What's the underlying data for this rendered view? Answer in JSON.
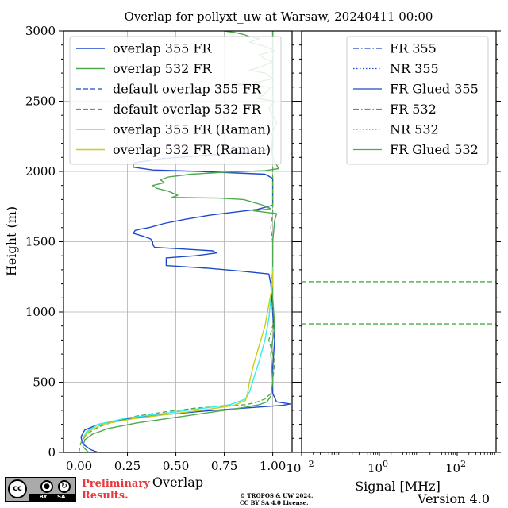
{
  "figure": {
    "title": "Overlap for pollyxt_uw at Warsaw, 20240411 00:00",
    "prelim_line1": "Preliminary",
    "prelim_line2": "Results.",
    "copyright_line1": "© TROPOS & UW 2024.",
    "copyright_line2": "CC BY SA 4.0 License.",
    "version": "Version 4.0",
    "cc_badge": {
      "main": "cc",
      "labels": "BY SA",
      "icons": [
        "person-icon",
        "share-alike-icon"
      ]
    }
  },
  "chart_data": [
    {
      "type": "line",
      "panel": "overlap",
      "xlabel": "Overlap",
      "ylabel": "Height (m)",
      "xlim": [
        -0.08,
        1.1
      ],
      "ylim": [
        0,
        3000
      ],
      "xticks": [
        "0.00",
        "0.25",
        "0.50",
        "0.75",
        "1.00"
      ],
      "xtick_values": [
        0,
        0.25,
        0.5,
        0.75,
        1.0
      ],
      "yticks": [
        "0",
        "500",
        "1000",
        "1500",
        "2000",
        "2500",
        "3000"
      ],
      "ytick_values": [
        0,
        500,
        1000,
        1500,
        2000,
        2500,
        3000
      ],
      "grid": true,
      "legend_position": "top-right",
      "series": [
        {
          "name": "overlap 355 FR",
          "color": "#1f49cc",
          "dash": "solid",
          "width": 1.4,
          "points": [
            [
              0.1,
              0
            ],
            [
              0.06,
              20
            ],
            [
              0.02,
              60
            ],
            [
              0.01,
              110
            ],
            [
              0.03,
              160
            ],
            [
              0.1,
              200
            ],
            [
              0.25,
              240
            ],
            [
              0.45,
              270
            ],
            [
              0.65,
              295
            ],
            [
              0.85,
              315
            ],
            [
              1.05,
              335
            ],
            [
              1.09,
              345
            ],
            [
              1.02,
              360
            ],
            [
              1.0,
              420
            ],
            [
              1.0,
              600
            ],
            [
              1.01,
              800
            ],
            [
              1.0,
              1000
            ],
            [
              0.99,
              1200
            ],
            [
              0.98,
              1270
            ],
            [
              0.84,
              1290
            ],
            [
              0.67,
              1310
            ],
            [
              0.45,
              1330
            ],
            [
              0.45,
              1360
            ],
            [
              0.45,
              1385
            ],
            [
              0.6,
              1400
            ],
            [
              0.71,
              1420
            ],
            [
              0.69,
              1435
            ],
            [
              0.52,
              1450
            ],
            [
              0.39,
              1460
            ],
            [
              0.38,
              1480
            ],
            [
              0.38,
              1500
            ],
            [
              0.37,
              1520
            ],
            [
              0.33,
              1540
            ],
            [
              0.28,
              1560
            ],
            [
              0.29,
              1580
            ],
            [
              0.32,
              1590
            ],
            [
              0.36,
              1600
            ],
            [
              0.44,
              1630
            ],
            [
              0.55,
              1660
            ],
            [
              0.68,
              1690
            ],
            [
              0.8,
              1710
            ],
            [
              0.92,
              1730
            ],
            [
              1.0,
              1760
            ],
            [
              1.0,
              1850
            ],
            [
              1.0,
              1950
            ],
            [
              0.96,
              1980
            ],
            [
              0.62,
              2000
            ],
            [
              0.38,
              2010
            ],
            [
              0.28,
              2030
            ],
            [
              0.28,
              2060
            ],
            [
              0.42,
              2090
            ],
            [
              0.7,
              2120
            ],
            [
              0.93,
              2140
            ],
            [
              1.0,
              2170
            ],
            [
              1.0,
              2300
            ],
            [
              1.0,
              2500
            ],
            [
              1.0,
              2700
            ],
            [
              1.0,
              3000
            ]
          ]
        },
        {
          "name": "overlap 532 FR",
          "color": "#4daa4d",
          "dash": "solid",
          "width": 1.4,
          "points": [
            [
              0.05,
              0
            ],
            [
              0.02,
              40
            ],
            [
              0.03,
              90
            ],
            [
              0.07,
              130
            ],
            [
              0.15,
              170
            ],
            [
              0.3,
              210
            ],
            [
              0.5,
              250
            ],
            [
              0.7,
              290
            ],
            [
              0.85,
              320
            ],
            [
              0.93,
              340
            ],
            [
              0.97,
              360
            ],
            [
              0.99,
              400
            ],
            [
              1.0,
              500
            ],
            [
              0.99,
              700
            ],
            [
              1.01,
              900
            ],
            [
              1.0,
              1100
            ],
            [
              1.0,
              1300
            ],
            [
              1.0,
              1500
            ],
            [
              1.01,
              1650
            ],
            [
              1.02,
              1700
            ],
            [
              0.9,
              1720
            ],
            [
              0.99,
              1735
            ],
            [
              0.95,
              1760
            ],
            [
              0.9,
              1780
            ],
            [
              0.85,
              1800
            ],
            [
              0.72,
              1810
            ],
            [
              0.48,
              1815
            ],
            [
              0.51,
              1830
            ],
            [
              0.46,
              1860
            ],
            [
              0.4,
              1880
            ],
            [
              0.38,
              1900
            ],
            [
              0.44,
              1920
            ],
            [
              0.42,
              1940
            ],
            [
              0.46,
              1960
            ],
            [
              0.58,
              1980
            ],
            [
              0.76,
              1995
            ],
            [
              0.96,
              2005
            ],
            [
              1.03,
              2020
            ],
            [
              1.0,
              2100
            ],
            [
              0.99,
              2250
            ],
            [
              1.02,
              2350
            ],
            [
              0.98,
              2450
            ],
            [
              1.01,
              2500
            ],
            [
              0.92,
              2520
            ],
            [
              0.95,
              2540
            ],
            [
              0.99,
              2600
            ],
            [
              0.8,
              2620
            ],
            [
              0.9,
              2630
            ],
            [
              1.0,
              2660
            ],
            [
              0.96,
              2700
            ],
            [
              0.88,
              2720
            ],
            [
              0.93,
              2740
            ],
            [
              1.0,
              2780
            ],
            [
              0.96,
              2800
            ],
            [
              0.93,
              2830
            ],
            [
              1.01,
              2860
            ],
            [
              0.96,
              2890
            ],
            [
              0.88,
              2920
            ],
            [
              0.93,
              2945
            ],
            [
              0.88,
              2960
            ],
            [
              0.85,
              2975
            ],
            [
              0.8,
              2990
            ],
            [
              0.75,
              3000
            ]
          ]
        },
        {
          "name": "default overlap 355 FR",
          "color": "#1f49cc",
          "dash": "dashed",
          "width": 1.3,
          "points": []
        },
        {
          "name": "default overlap 532 FR",
          "color": "#4daa4d",
          "dash": "dashed",
          "width": 1.3,
          "points": [
            [
              0.0,
              0
            ],
            [
              0.01,
              70
            ],
            [
              0.04,
              130
            ],
            [
              0.1,
              180
            ],
            [
              0.2,
              230
            ],
            [
              0.3,
              260
            ],
            [
              0.45,
              290
            ],
            [
              0.6,
              315
            ],
            [
              0.75,
              330
            ],
            [
              0.86,
              340
            ],
            [
              0.91,
              355
            ],
            [
              0.96,
              380
            ],
            [
              0.99,
              420
            ],
            [
              1.0,
              500
            ],
            [
              1.01,
              650
            ],
            [
              0.98,
              800
            ],
            [
              1.01,
              950
            ],
            [
              0.99,
              1100
            ],
            [
              1.0,
              1300
            ],
            [
              1.0,
              1500
            ],
            [
              0.99,
              1600
            ],
            [
              1.0,
              1700
            ],
            [
              1.0,
              2000
            ],
            [
              1.0,
              2300
            ],
            [
              1.0,
              2600
            ],
            [
              1.0,
              3000
            ]
          ]
        },
        {
          "name": "overlap 355 FR (Raman)",
          "color": "#33eeee",
          "dash": "solid",
          "width": 1.4,
          "points": [
            [
              0.02,
              100
            ],
            [
              0.04,
              150
            ],
            [
              0.1,
              200
            ],
            [
              0.25,
              245
            ],
            [
              0.45,
              280
            ],
            [
              0.62,
              310
            ],
            [
              0.78,
              340
            ],
            [
              0.86,
              380
            ],
            [
              0.88,
              430
            ],
            [
              0.9,
              520
            ],
            [
              0.93,
              650
            ],
            [
              0.96,
              800
            ],
            [
              0.98,
              950
            ],
            [
              0.99,
              1100
            ],
            [
              1.0,
              1250
            ],
            [
              1.0,
              1320
            ]
          ]
        },
        {
          "name": "overlap 532 FR (Raman)",
          "color": "#cccc1a",
          "dash": "solid",
          "width": 1.4,
          "points": [
            [
              0.02,
              100
            ],
            [
              0.05,
              150
            ],
            [
              0.12,
              200
            ],
            [
              0.28,
              240
            ],
            [
              0.48,
              275
            ],
            [
              0.66,
              305
            ],
            [
              0.8,
              335
            ],
            [
              0.86,
              370
            ],
            [
              0.87,
              420
            ],
            [
              0.88,
              500
            ],
            [
              0.9,
              620
            ],
            [
              0.93,
              760
            ],
            [
              0.96,
              900
            ],
            [
              0.98,
              1050
            ],
            [
              1.0,
              1200
            ],
            [
              1.0,
              1300
            ]
          ]
        }
      ]
    },
    {
      "type": "line",
      "panel": "signal",
      "xlabel": "Signal [MHz]",
      "xscale": "log",
      "xlim": [
        0.01,
        1000
      ],
      "ylim": [
        0,
        3000
      ],
      "xticks": [
        "10",
        "10",
        "10"
      ],
      "xtick_exponents": [
        "−2",
        "0",
        "2"
      ],
      "xtick_values": [
        0.01,
        1,
        100
      ],
      "grid": false,
      "legend_position": "top-right",
      "series": [
        {
          "name": "FR 355",
          "color": "#1f49cc",
          "dash": "dashdot",
          "width": 1.3,
          "points": []
        },
        {
          "name": "NR 355",
          "color": "#1f49cc",
          "dash": "dotted",
          "width": 1.3,
          "points": []
        },
        {
          "name": "FR Glued 355",
          "color": "#1f49cc",
          "dash": "solid",
          "width": 1.3,
          "points": []
        },
        {
          "name": "FR 532",
          "color": "#4daa4d",
          "dash": "dashdot",
          "width": 1.3,
          "points": []
        },
        {
          "name": "NR 532",
          "color": "#4daa4d",
          "dash": "dotted",
          "width": 1.3,
          "points": []
        },
        {
          "name": "FR Glued 532",
          "color": "#4daa4d",
          "dash": "solid",
          "width": 1.3,
          "points": []
        }
      ],
      "reference_heights": [
        1215,
        915
      ],
      "reference_color": "#4daa4d"
    }
  ]
}
